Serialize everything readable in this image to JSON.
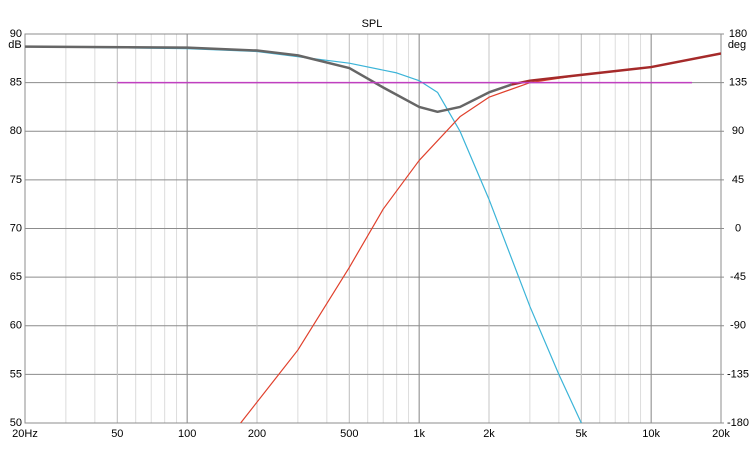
{
  "chart_data": {
    "type": "line",
    "title": "SPL",
    "ylabel": "dB",
    "y2label": "deg",
    "xscale": "log",
    "grid": true,
    "xlim": [
      20,
      20000
    ],
    "xticks": [
      {
        "value": 20,
        "label": "20Hz"
      },
      50,
      100,
      200,
      500,
      {
        "value": 1000,
        "label": "1k"
      },
      {
        "value": 2000,
        "label": "2k"
      },
      {
        "value": 5000,
        "label": "5k"
      },
      {
        "value": 10000,
        "label": "10k"
      },
      {
        "value": 20000,
        "label": "20k"
      }
    ],
    "ylim": [
      50,
      90
    ],
    "yticks": [
      50,
      55,
      60,
      65,
      70,
      75,
      80,
      85,
      90
    ],
    "y2lim": [
      -180,
      180
    ],
    "y2ticks": [
      -180,
      -135,
      -90,
      -45,
      0,
      45,
      90,
      135,
      180
    ],
    "series": [
      {
        "color": "#3bb4d8",
        "width": 1.2,
        "x": [
          20,
          100,
          200,
          500,
          800,
          1000,
          1200,
          1500,
          2000,
          3000,
          4000,
          5000
        ],
        "values": [
          88.7,
          88.5,
          88.2,
          87,
          86,
          85.2,
          84,
          80,
          73,
          62,
          55,
          50
        ]
      },
      {
        "color": "#e0402c",
        "width": 1.2,
        "x": [
          170,
          300,
          500,
          700,
          1000,
          1500,
          2000,
          3000,
          5000,
          10000,
          20000
        ],
        "values": [
          50,
          57.5,
          66,
          72,
          77,
          81.5,
          83.5,
          85,
          85.8,
          86.6,
          88
        ]
      },
      {
        "color": "#666666",
        "width": 2.5,
        "x": [
          20,
          100,
          200,
          300,
          500,
          700,
          1000,
          1200,
          1500,
          2000,
          2500
        ],
        "values": [
          88.7,
          88.6,
          88.3,
          87.8,
          86.5,
          84.5,
          82.5,
          82,
          82.5,
          84,
          84.8
        ]
      },
      {
        "color": "#a52a2a",
        "width": 2.5,
        "x": [
          2500,
          3000,
          5000,
          10000,
          20000
        ],
        "values": [
          84.8,
          85.2,
          85.8,
          86.6,
          88
        ]
      },
      {
        "color": "#c040c0",
        "width": 1.5,
        "x": [
          50,
          15000
        ],
        "values": [
          85,
          85
        ]
      }
    ]
  }
}
